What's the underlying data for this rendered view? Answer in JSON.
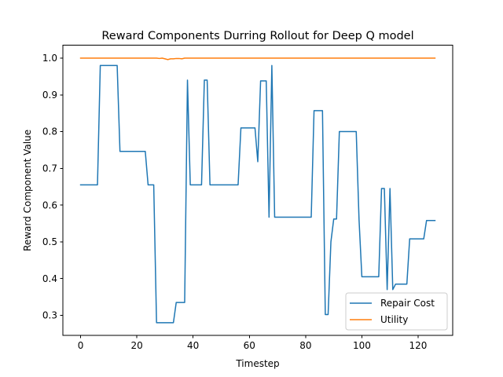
{
  "chart_data": {
    "type": "line",
    "title": "Reward Components Durring Rollout for Deep Q model",
    "xlabel": "Timestep",
    "ylabel": "Reward Component Value",
    "xlim": [
      -6.3,
      132.3
    ],
    "ylim": [
      0.245,
      1.035
    ],
    "xticks": [
      0,
      20,
      40,
      60,
      80,
      100,
      120
    ],
    "xtick_labels": [
      "0",
      "20",
      "40",
      "60",
      "80",
      "100",
      "120"
    ],
    "yticks": [
      0.3,
      0.4,
      0.5,
      0.6,
      0.7,
      0.8,
      0.9,
      1.0
    ],
    "ytick_labels": [
      "0.3",
      "0.4",
      "0.5",
      "0.6",
      "0.7",
      "0.8",
      "0.9",
      "1.0"
    ],
    "grid": false,
    "legend_position": "lower-right",
    "series": [
      {
        "name": "Repair Cost",
        "color": "#1f77b4",
        "points": [
          [
            0,
            0.655
          ],
          [
            6,
            0.655
          ],
          [
            7,
            0.98
          ],
          [
            13,
            0.98
          ],
          [
            14,
            0.746
          ],
          [
            23,
            0.746
          ],
          [
            24,
            0.655
          ],
          [
            26,
            0.655
          ],
          [
            27,
            0.28
          ],
          [
            33,
            0.28
          ],
          [
            34,
            0.335
          ],
          [
            37,
            0.335
          ],
          [
            38,
            0.94
          ],
          [
            39,
            0.655
          ],
          [
            43,
            0.655
          ],
          [
            44,
            0.94
          ],
          [
            45,
            0.94
          ],
          [
            46,
            0.655
          ],
          [
            56,
            0.655
          ],
          [
            57,
            0.81
          ],
          [
            62,
            0.81
          ],
          [
            63,
            0.718
          ],
          [
            64,
            0.938
          ],
          [
            66,
            0.938
          ],
          [
            67,
            0.567
          ],
          [
            68,
            0.98
          ],
          [
            69,
            0.567
          ],
          [
            82,
            0.567
          ],
          [
            83,
            0.857
          ],
          [
            86,
            0.857
          ],
          [
            87,
            0.302
          ],
          [
            88,
            0.302
          ],
          [
            89,
            0.5
          ],
          [
            90,
            0.562
          ],
          [
            91,
            0.562
          ],
          [
            92,
            0.8
          ],
          [
            98,
            0.8
          ],
          [
            99,
            0.56
          ],
          [
            100,
            0.405
          ],
          [
            106,
            0.405
          ],
          [
            107,
            0.645
          ],
          [
            108,
            0.645
          ],
          [
            109,
            0.37
          ],
          [
            110,
            0.645
          ],
          [
            111,
            0.37
          ],
          [
            112,
            0.385
          ],
          [
            116,
            0.385
          ],
          [
            117,
            0.508
          ],
          [
            122,
            0.508
          ],
          [
            123,
            0.558
          ],
          [
            126,
            0.558
          ]
        ]
      },
      {
        "name": "Utility",
        "color": "#ff7f0e",
        "points": [
          [
            0,
            1.0
          ],
          [
            27,
            1.0
          ],
          [
            28,
            0.999
          ],
          [
            29,
            1.0
          ],
          [
            30,
            0.998
          ],
          [
            31,
            0.996
          ],
          [
            32,
            0.998
          ],
          [
            33,
            0.998
          ],
          [
            34,
            0.999
          ],
          [
            35,
            0.999
          ],
          [
            36,
            0.998
          ],
          [
            37,
            1.0
          ],
          [
            126,
            1.0
          ]
        ]
      }
    ]
  }
}
